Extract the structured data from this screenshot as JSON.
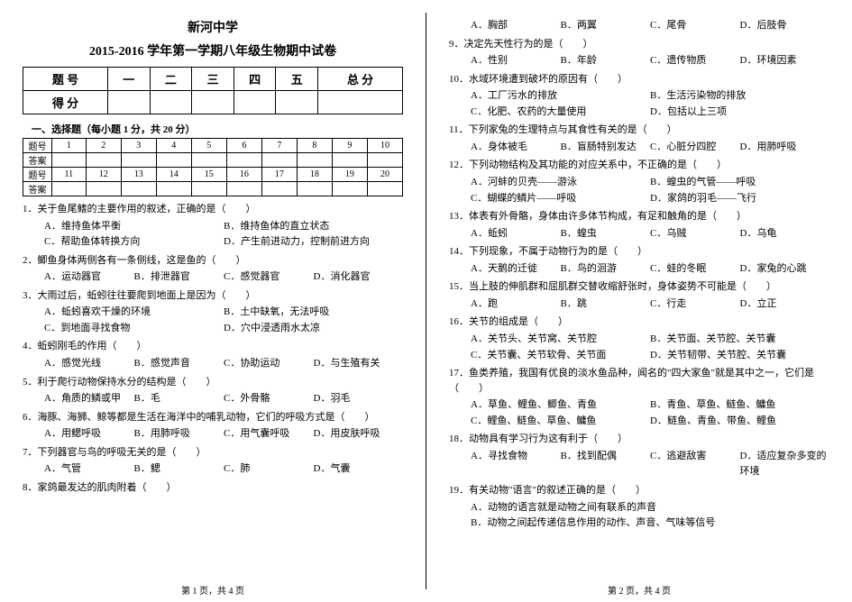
{
  "school": "新河中学",
  "title": "2015-2016 学年第一学期八年级生物期中试卷",
  "score_headers": [
    "题 号",
    "一",
    "二",
    "三",
    "四",
    "五",
    "总 分"
  ],
  "score_row_label": "得 分",
  "section1_heading": "一、选择题（每小题 1 分，共 20 分）",
  "ans_label": "题号",
  "ans_label2": "答案",
  "nums_a": [
    "1",
    "2",
    "3",
    "4",
    "5",
    "6",
    "7",
    "8",
    "9",
    "10"
  ],
  "nums_b": [
    "11",
    "12",
    "13",
    "14",
    "15",
    "16",
    "17",
    "18",
    "19",
    "20"
  ],
  "left_questions": [
    {
      "n": "1．",
      "stem": "关于鱼尾鳍的主要作用的叙述，正确的是（　　）",
      "opts": [
        "A．维持鱼体平衡",
        "B．维持鱼体的直立状态",
        "C．帮助鱼体转换方向",
        "D．产生前进动力，控制前进方向"
      ],
      "cols": 2
    },
    {
      "n": "2．",
      "stem": "鲫鱼身体两侧各有一条侧线，这是鱼的（　　）",
      "opts": [
        "A．运动器官",
        "B．排泄器官",
        "C．感觉器官",
        "D．消化器官"
      ],
      "cols": 4
    },
    {
      "n": "3．",
      "stem": "大雨过后，蚯蚓往往要爬到地面上是因为（　　）",
      "opts": [
        "A．蚯蚓喜欢干燥的环境",
        "B．土中缺氧，无法呼吸",
        "C．到地面寻找食物",
        "D．穴中浸透雨水太凉"
      ],
      "cols": 2
    },
    {
      "n": "4．",
      "stem": "蚯蚓刚毛的作用（　　）",
      "opts": [
        "A．感觉光线",
        "B．感觉声音",
        "C．协助运动",
        "D．与生殖有关"
      ],
      "cols": 4
    },
    {
      "n": "5．",
      "stem": "利于爬行动物保持水分的结构是（　　）",
      "opts": [
        "A．角质的鳞或甲",
        "B．毛",
        "C．外骨骼",
        "D．羽毛"
      ],
      "cols": 4
    },
    {
      "n": "6．",
      "stem": "海豚、海狮、鲸等都是生活在海洋中的哺乳动物，它们的呼吸方式是（　　）",
      "opts": [
        "A．用鳃呼吸",
        "B．用肺呼吸",
        "C．用气囊呼吸",
        "D．用皮肤呼吸"
      ],
      "cols": 4
    },
    {
      "n": "7．",
      "stem": "下列器官与鸟的呼吸无关的是（　　）",
      "opts": [
        "A．气管",
        "B．鳃",
        "C．肺",
        "D．气囊"
      ],
      "cols": 4
    },
    {
      "n": "8．",
      "stem": "家鸽最发达的肌肉附着（　　）",
      "opts": [],
      "cols": 4
    }
  ],
  "right_questions": [
    {
      "n": "",
      "stem": "",
      "opts": [
        "A．胸部",
        "B．两翼",
        "C．尾骨",
        "D．后肢骨"
      ],
      "cols": 4
    },
    {
      "n": "9．",
      "stem": "决定先天性行为的是（　　）",
      "opts": [
        "A．性别",
        "B．年龄",
        "C．遗传物质",
        "D．环境因素"
      ],
      "cols": 4
    },
    {
      "n": "10．",
      "stem": "水域环境遭到破坏的原因有（　　）",
      "opts": [
        "A．工厂污水的排放",
        "B．生活污染物的排放",
        "C．化肥、农药的大量使用",
        "D．包括以上三项"
      ],
      "cols": 2
    },
    {
      "n": "11．",
      "stem": "下列家兔的生理特点与其食性有关的是（　　）",
      "opts": [
        "A．身体被毛",
        "B．盲肠特别发达",
        "C．心脏分四腔",
        "D．用肺呼吸"
      ],
      "cols": 4
    },
    {
      "n": "12．",
      "stem": "下列动物结构及其功能的对应关系中，不正确的是（　　）",
      "opts": [
        "A．河蚌的贝壳——游泳",
        "B．蝗虫的气管——呼吸",
        "C．蝴蝶的鳞片——呼吸",
        "D．家鸽的羽毛——飞行"
      ],
      "cols": 2
    },
    {
      "n": "13．",
      "stem": "体表有外骨骼，身体由许多体节构成，有足和触角的是（　　）",
      "opts": [
        "A．蚯蚓",
        "B．蝗虫",
        "C．乌贼",
        "D．乌龟"
      ],
      "cols": 4
    },
    {
      "n": "14．",
      "stem": "下列现象，不属于动物行为的是（　　）",
      "opts": [
        "A．天鹅的迁徙",
        "B．鸟的洄游",
        "C．蛙的冬眠",
        "D．家兔的心跳"
      ],
      "cols": 4
    },
    {
      "n": "15．",
      "stem": "当上肢的伸肌群和屈肌群交替收缩舒张时，身体姿势不可能是（　　）",
      "opts": [
        "A．跑",
        "B．跳",
        "C．行走",
        "D．立正"
      ],
      "cols": 4
    },
    {
      "n": "16．",
      "stem": "关节的组成是（　　）",
      "opts": [
        "A．关节头、关节窝、关节腔",
        "B．关节面、关节腔、关节囊",
        "C．关节囊、关节软骨、关节面",
        "D．关节韧带、关节腔、关节囊"
      ],
      "cols": 2
    },
    {
      "n": "17．",
      "stem": "鱼类养殖，我国有优良的淡水鱼品种，闻名的\"四大家鱼\"就是其中之一，它们是（　　）",
      "opts": [
        "A．草鱼、鲤鱼、鲫鱼、青鱼",
        "B．青鱼、草鱼、鲢鱼、鳙鱼",
        "C．鲤鱼、鲢鱼、草鱼、鳙鱼",
        "D．鲢鱼、青鱼、带鱼、鲤鱼"
      ],
      "cols": 2
    },
    {
      "n": "18．",
      "stem": "动物具有学习行为这有利于（　　）",
      "opts": [
        "A．寻找食物",
        "B．找到配偶",
        "C．逃避敌害",
        "D．适应复杂多变的环境"
      ],
      "cols": 4
    },
    {
      "n": "19．",
      "stem": "有关动物\"语言\"的叙述正确的是（　　）",
      "opts": [
        "A．动物的语言就是动物之间有联系的声音",
        "B．动物之间起传递信息作用的动作、声音、气味等信号"
      ],
      "cols": 1
    }
  ],
  "footer_left": "第 1 页，共 4 页",
  "footer_right": "第 2 页，共 4 页"
}
